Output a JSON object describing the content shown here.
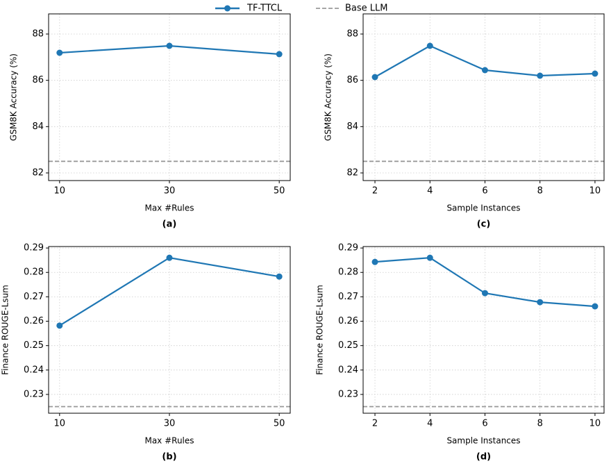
{
  "legend": {
    "series_name": "TF-TTCL",
    "baseline_name": "Base LLM"
  },
  "chart_data": [
    {
      "type": "line",
      "caption": "(a)",
      "xlabel": "Max #Rules",
      "ylabel": "GSM8K Accuracy (%)",
      "x": [
        10,
        30,
        50
      ],
      "xlim": [
        8,
        52
      ],
      "xticks": [
        10,
        30,
        50
      ],
      "ylim": [
        81.67,
        88.87
      ],
      "yticks": [
        82,
        84,
        86,
        88
      ],
      "grid": true,
      "series": [
        {
          "color": "#1f77b4",
          "values": [
            87.19,
            87.49,
            87.13
          ]
        }
      ],
      "baseline": 82.5,
      "baseline_color": "#999999"
    },
    {
      "type": "line",
      "caption": "(c)",
      "xlabel": "Sample Instances",
      "ylabel": "GSM8K Accuracy (%)",
      "x": [
        2,
        4,
        6,
        8,
        10
      ],
      "xlim": [
        1.57,
        10.33
      ],
      "xticks": [
        2,
        4,
        6,
        8,
        10
      ],
      "ylim": [
        81.67,
        88.87
      ],
      "yticks": [
        82,
        84,
        86,
        88
      ],
      "grid": true,
      "series": [
        {
          "color": "#1f77b4",
          "values": [
            86.14,
            87.49,
            86.44,
            86.2,
            86.29
          ]
        }
      ],
      "baseline": 82.5,
      "baseline_color": "#999999"
    },
    {
      "type": "line",
      "caption": "(b)",
      "xlabel": "Max #Rules",
      "ylabel": "Finance ROUGE-Lsum",
      "x": [
        10,
        30,
        50
      ],
      "xlim": [
        8,
        52
      ],
      "xticks": [
        10,
        30,
        50
      ],
      "ylim": [
        0.2223,
        0.2906
      ],
      "yticks": [
        0.23,
        0.24,
        0.25,
        0.26,
        0.27,
        0.28,
        0.29
      ],
      "grid": true,
      "series": [
        {
          "color": "#1f77b4",
          "values": [
            0.2582,
            0.286,
            0.2783
          ]
        }
      ],
      "baseline": 0.225,
      "baseline_color": "#999999"
    },
    {
      "type": "line",
      "caption": "(d)",
      "xlabel": "Sample Instances",
      "ylabel": "Finance ROUGE-Lsum",
      "x": [
        2,
        4,
        6,
        8,
        10
      ],
      "xlim": [
        1.57,
        10.33
      ],
      "xticks": [
        2,
        4,
        6,
        8,
        10
      ],
      "ylim": [
        0.2223,
        0.2906
      ],
      "yticks": [
        0.23,
        0.24,
        0.25,
        0.26,
        0.27,
        0.28,
        0.29
      ],
      "grid": true,
      "series": [
        {
          "color": "#1f77b4",
          "values": [
            0.2843,
            0.286,
            0.2715,
            0.2678,
            0.2661
          ]
        }
      ],
      "baseline": 0.225,
      "baseline_color": "#999999"
    }
  ]
}
